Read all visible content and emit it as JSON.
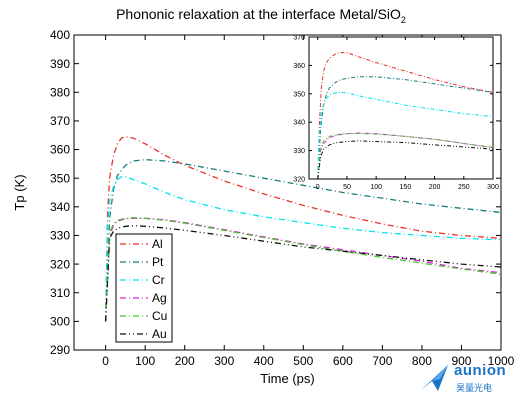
{
  "title": {
    "main": "Phononic relaxation at the interface Metal/SiO",
    "sub": "2"
  },
  "watermark": {
    "brand": "aunion",
    "sub": "昊量光电"
  },
  "chart_data": [
    {
      "type": "line",
      "xlabel": "Time (ps)",
      "ylabel": "Tp (K)",
      "xlim": [
        -80,
        1000
      ],
      "ylim": [
        290,
        400
      ],
      "xticks": [
        0,
        100,
        200,
        300,
        400,
        500,
        600,
        700,
        800,
        900,
        1000
      ],
      "yticks": [
        290,
        300,
        310,
        320,
        330,
        340,
        350,
        360,
        370,
        380,
        390,
        400
      ],
      "legend_position": "bottom-left",
      "series": [
        {
          "name": "Al",
          "color": "#e8332a",
          "dash": "6,3,1,3",
          "x": [
            0,
            5,
            10,
            20,
            30,
            40,
            50,
            70,
            100,
            150,
            200,
            300,
            400,
            500,
            600,
            700,
            800,
            900,
            1000
          ],
          "y": [
            300,
            338,
            350,
            358,
            362,
            364,
            364.5,
            364,
            362,
            358,
            354.5,
            349,
            344.5,
            340.5,
            337,
            334,
            331.5,
            330,
            329
          ]
        },
        {
          "name": "Pt",
          "color": "#1a7d7d",
          "dash": "6,3,1,3",
          "x": [
            0,
            10,
            20,
            30,
            50,
            70,
            100,
            150,
            200,
            300,
            400,
            500,
            600,
            700,
            800,
            900,
            1000
          ],
          "y": [
            300,
            336,
            346,
            351,
            354.5,
            356,
            356.5,
            356,
            355,
            352.5,
            350,
            347.5,
            345,
            343,
            341,
            339.5,
            338
          ]
        },
        {
          "name": "Cr",
          "color": "#00e5ee",
          "dash": "6,3,1,3",
          "x": [
            0,
            5,
            10,
            20,
            30,
            40,
            50,
            70,
            100,
            150,
            200,
            300,
            400,
            500,
            600,
            700,
            800,
            900,
            1000
          ],
          "y": [
            300,
            334,
            342,
            347,
            349.5,
            350.5,
            350.5,
            349.5,
            348,
            345,
            342.5,
            339,
            336.5,
            334.5,
            332.5,
            331,
            330,
            329,
            328.5
          ]
        },
        {
          "name": "Ag",
          "color": "#dd22dd",
          "dash": "6,3,1,3",
          "x": [
            0,
            10,
            20,
            30,
            50,
            70,
            100,
            150,
            200,
            300,
            400,
            500,
            600,
            700,
            800,
            900,
            1000
          ],
          "y": [
            300,
            330,
            333.5,
            335,
            335.8,
            336,
            336,
            335.5,
            334.5,
            332,
            329.5,
            327,
            325,
            323,
            321,
            318.5,
            317
          ]
        },
        {
          "name": "Cu",
          "color": "#44c52a",
          "dash": "6,3,1,3",
          "x": [
            0,
            10,
            20,
            30,
            50,
            70,
            100,
            150,
            200,
            300,
            400,
            500,
            600,
            700,
            800,
            900,
            1000
          ],
          "y": [
            300,
            331,
            334,
            335.3,
            336,
            336.2,
            336,
            335.3,
            334.3,
            331.8,
            329.3,
            326.8,
            324.5,
            322.3,
            320.3,
            318.3,
            316.5
          ]
        },
        {
          "name": "Au",
          "color": "#111111",
          "dash": "6,3,1,3,1,3",
          "x": [
            0,
            10,
            20,
            30,
            50,
            70,
            100,
            150,
            200,
            300,
            400,
            500,
            600,
            700,
            800,
            900,
            1000
          ],
          "y": [
            300,
            329,
            331.5,
            332.5,
            333.2,
            333.4,
            333.2,
            332.6,
            331.8,
            330,
            328,
            326,
            324.5,
            323,
            321.5,
            320,
            319
          ]
        }
      ]
    },
    {
      "type": "line",
      "xlabel": "",
      "ylabel": "",
      "xlim": [
        -15,
        300
      ],
      "ylim": [
        320,
        370
      ],
      "xticks": [
        0,
        50,
        100,
        150,
        200,
        250,
        300
      ],
      "yticks": [
        320,
        330,
        340,
        350,
        360,
        370
      ],
      "series": [
        {
          "name": "",
          "color": "#e8332a",
          "dash": "4,2,1,2",
          "x": [
            0,
            3,
            6,
            10,
            15,
            20,
            30,
            40,
            50,
            70,
            100,
            150,
            200,
            250,
            300
          ],
          "y": [
            320,
            340,
            352,
            358,
            361,
            362.5,
            364,
            364.5,
            364.5,
            363,
            361,
            358,
            355,
            352.5,
            350.5
          ]
        },
        {
          "name": "",
          "color": "#1a7d7d",
          "dash": "4,2,1,2",
          "x": [
            0,
            5,
            10,
            15,
            20,
            30,
            40,
            50,
            70,
            100,
            150,
            200,
            250,
            300
          ],
          "y": [
            320,
            338,
            346,
            350,
            352,
            354,
            355,
            355.5,
            356,
            356,
            355,
            353.5,
            352,
            350.5
          ]
        },
        {
          "name": "",
          "color": "#00e5ee",
          "dash": "4,2,1,2",
          "x": [
            0,
            3,
            6,
            10,
            15,
            20,
            30,
            40,
            50,
            70,
            100,
            150,
            200,
            250,
            300
          ],
          "y": [
            320,
            336,
            343,
            346.5,
            348.5,
            349.5,
            350.3,
            350.5,
            350.3,
            349.3,
            348,
            346,
            344.5,
            343,
            342
          ]
        },
        {
          "name": "",
          "color": "#dd22dd",
          "dash": "4,2,1,2",
          "x": [
            0,
            5,
            10,
            20,
            30,
            50,
            70,
            100,
            150,
            200,
            250,
            300
          ],
          "y": [
            320,
            330,
            332.5,
            334.5,
            335.3,
            336,
            336.2,
            336,
            335,
            334,
            332.5,
            331
          ]
        },
        {
          "name": "",
          "color": "#44c52a",
          "dash": "4,2,1,2",
          "x": [
            0,
            5,
            10,
            20,
            30,
            50,
            70,
            100,
            150,
            200,
            250,
            300
          ],
          "y": [
            320,
            331,
            333.5,
            335,
            335.6,
            336,
            336,
            335.8,
            335,
            334,
            332.5,
            331.2
          ]
        },
        {
          "name": "",
          "color": "#111111",
          "dash": "4,2,1,2,1,2",
          "x": [
            0,
            5,
            10,
            20,
            30,
            50,
            70,
            100,
            150,
            200,
            250,
            300
          ],
          "y": [
            320,
            328,
            330.5,
            332,
            332.7,
            333.2,
            333.4,
            333.2,
            332.8,
            332,
            331.3,
            330.5
          ]
        }
      ]
    }
  ]
}
